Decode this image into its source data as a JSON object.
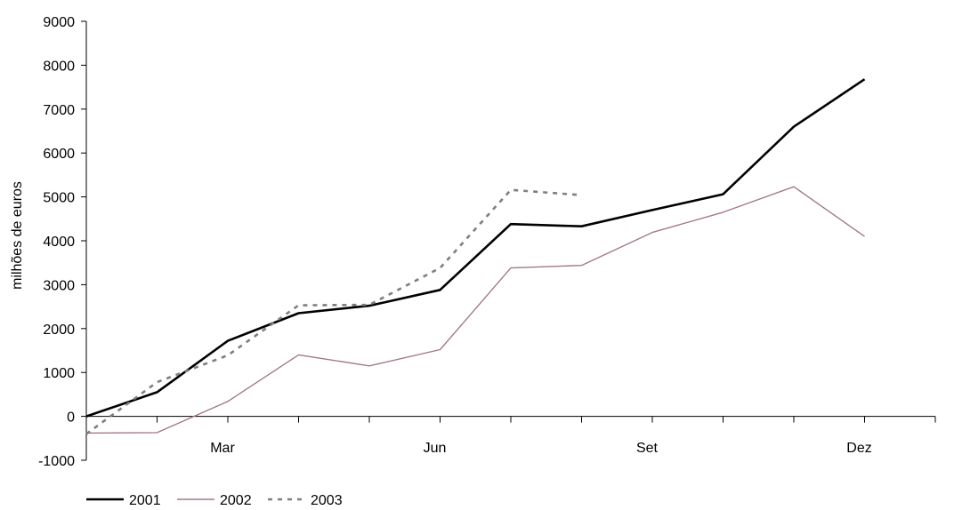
{
  "chart_data": {
    "type": "line",
    "ylabel": "milhões de euros",
    "xlabel": "",
    "ylim": [
      -1000,
      9000
    ],
    "yticks": [
      -1000,
      0,
      1000,
      2000,
      3000,
      4000,
      5000,
      6000,
      7000,
      8000,
      9000
    ],
    "ytick_labels": [
      "-1000",
      "0",
      "1000",
      "2000",
      "3000",
      "4000",
      "5000",
      "6000",
      "7000",
      "8000",
      "9000"
    ],
    "x_count": 13,
    "xtick_labels": [
      {
        "x": 2,
        "label": "Mar"
      },
      {
        "x": 5,
        "label": "Jun"
      },
      {
        "x": 8,
        "label": "Set"
      },
      {
        "x": 11,
        "label": "Dez"
      }
    ],
    "grid": false,
    "legend": "bottom-left",
    "series": [
      {
        "name": "2001",
        "color": "#000000",
        "style": "solid-thick",
        "values": [
          0,
          550,
          1720,
          2350,
          2520,
          2880,
          4380,
          4330,
          4700,
          5060,
          6600,
          7680
        ]
      },
      {
        "name": "2002",
        "color": "#a37a82",
        "style": "solid-thin",
        "values": [
          -380,
          -370,
          340,
          1400,
          1150,
          1520,
          3380,
          3440,
          4190,
          4650,
          5230,
          4100
        ]
      },
      {
        "name": "2003",
        "color": "#7f7f7f",
        "style": "dashed",
        "values": [
          -400,
          780,
          1390,
          2530,
          2540,
          3380,
          5160,
          5040
        ]
      }
    ]
  }
}
